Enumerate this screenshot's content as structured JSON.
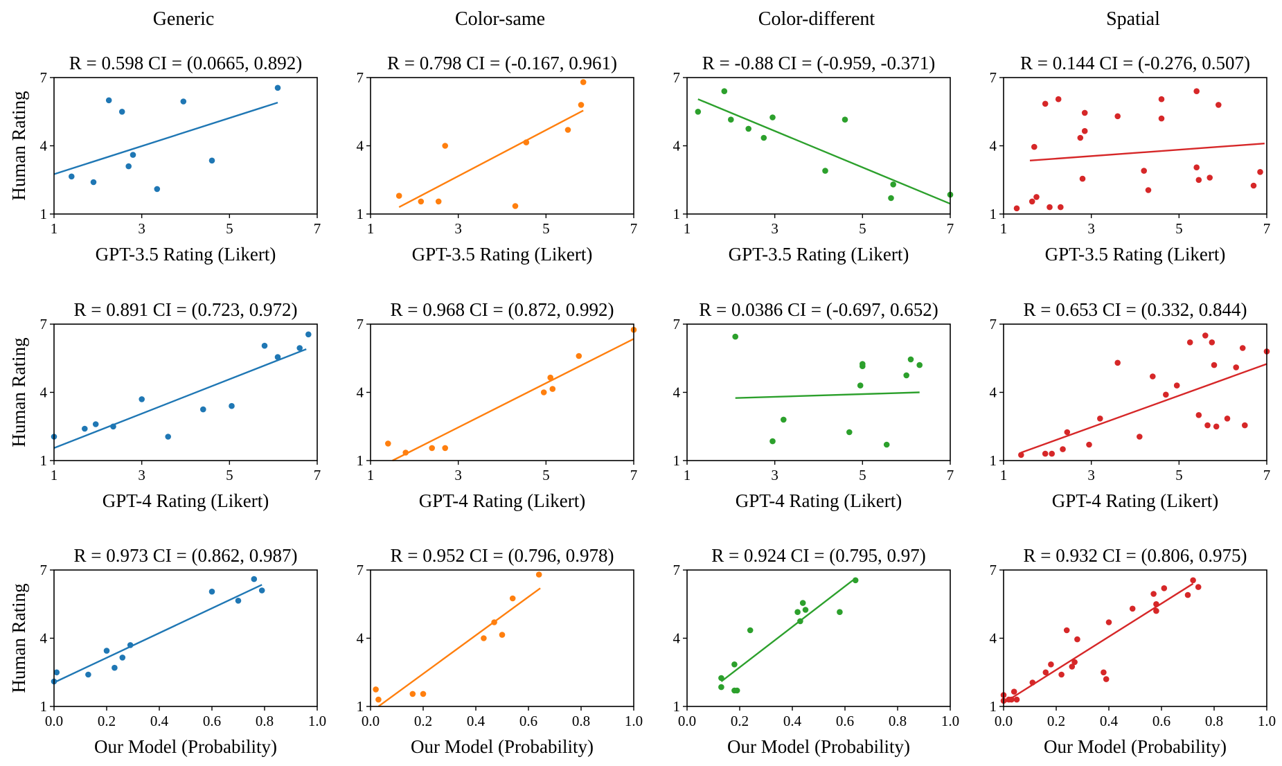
{
  "figure": {
    "column_titles": [
      "Generic",
      "Color-same",
      "Color-different",
      "Spatial"
    ],
    "ylabel": "Human Rating",
    "row_xlabels": [
      "GPT-3.5 Rating (Likert)",
      "GPT-4 Rating (Likert)",
      "Our Model (Probability)"
    ]
  },
  "colors": [
    "#1f77b4",
    "#ff7f0e",
    "#2ca02c",
    "#d62728"
  ],
  "chart_data": [
    {
      "type": "scatter",
      "row": 0,
      "col": 0,
      "title": "R = 0.598  CI = (0.0665, 0.892)",
      "xlabel": "GPT-3.5 Rating (Likert)",
      "ylabel": "Human Rating",
      "xlim": [
        1,
        7
      ],
      "ylim": [
        1,
        7
      ],
      "xticks": [
        1,
        3,
        5,
        7
      ],
      "xtick_labels": [
        "1",
        "3",
        "5",
        "7"
      ],
      "yticks": [
        1,
        4,
        7
      ],
      "ytick_labels": [
        "1",
        "4",
        "7"
      ],
      "x": [
        1.4,
        1.9,
        2.25,
        2.55,
        2.7,
        2.8,
        3.35,
        3.95,
        4.6,
        6.1
      ],
      "y": [
        2.65,
        2.4,
        6.0,
        5.5,
        3.1,
        3.6,
        2.1,
        5.95,
        3.35,
        6.55
      ],
      "fit": {
        "x": [
          1,
          6.1
        ],
        "y": [
          2.75,
          5.9
        ]
      }
    },
    {
      "type": "scatter",
      "row": 0,
      "col": 1,
      "title": "R = 0.798  CI = (-0.167, 0.961)",
      "xlabel": "GPT-3.5 Rating (Likert)",
      "ylabel": "Human Rating",
      "xlim": [
        1,
        7
      ],
      "ylim": [
        1,
        7
      ],
      "xticks": [
        1,
        3,
        5,
        7
      ],
      "xtick_labels": [
        "1",
        "3",
        "5",
        "7"
      ],
      "yticks": [
        1,
        4,
        7
      ],
      "ytick_labels": [
        "1",
        "4",
        "7"
      ],
      "x": [
        1.65,
        2.15,
        2.55,
        2.7,
        4.3,
        4.55,
        5.5,
        5.8,
        5.85
      ],
      "y": [
        1.8,
        1.55,
        1.55,
        4.0,
        1.35,
        4.15,
        4.7,
        5.8,
        6.8
      ],
      "fit": {
        "x": [
          1.65,
          5.85
        ],
        "y": [
          1.3,
          5.55
        ]
      }
    },
    {
      "type": "scatter",
      "row": 0,
      "col": 2,
      "title": "R = -0.88  CI = (-0.959, -0.371)",
      "xlabel": "GPT-3.5 Rating (Likert)",
      "ylabel": "Human Rating",
      "xlim": [
        1,
        7
      ],
      "ylim": [
        1,
        7
      ],
      "xticks": [
        1,
        3,
        5,
        7
      ],
      "xtick_labels": [
        "1",
        "3",
        "5",
        "7"
      ],
      "yticks": [
        1,
        4,
        7
      ],
      "ytick_labels": [
        "1",
        "4",
        "7"
      ],
      "x": [
        1.25,
        1.85,
        2.0,
        2.4,
        2.75,
        2.95,
        4.15,
        4.6,
        5.65,
        5.7,
        7.0
      ],
      "y": [
        5.5,
        6.4,
        5.15,
        4.75,
        4.35,
        5.25,
        2.9,
        5.15,
        1.7,
        2.3,
        1.85
      ],
      "fit": {
        "x": [
          1.25,
          7.0
        ],
        "y": [
          6.05,
          1.45
        ]
      }
    },
    {
      "type": "scatter",
      "row": 0,
      "col": 3,
      "title": "R = 0.144  CI = (-0.276, 0.507)",
      "xlabel": "GPT-3.5 Rating (Likert)",
      "ylabel": "Human Rating",
      "xlim": [
        1,
        7
      ],
      "ylim": [
        1,
        7
      ],
      "xticks": [
        1,
        3,
        5,
        7
      ],
      "xtick_labels": [
        "1",
        "3",
        "5",
        "7"
      ],
      "yticks": [
        1,
        4,
        7
      ],
      "ytick_labels": [
        "1",
        "4",
        "7"
      ],
      "x": [
        1.3,
        1.65,
        1.7,
        1.75,
        1.95,
        2.05,
        2.25,
        2.3,
        2.75,
        2.8,
        2.85,
        2.85,
        3.6,
        4.2,
        4.3,
        4.6,
        4.6,
        5.4,
        5.4,
        5.45,
        5.7,
        5.9,
        6.7,
        6.85
      ],
      "y": [
        1.25,
        1.55,
        3.95,
        1.75,
        5.85,
        1.3,
        6.05,
        1.3,
        4.35,
        2.55,
        5.45,
        4.65,
        5.3,
        2.9,
        2.05,
        6.05,
        5.2,
        6.4,
        3.05,
        2.5,
        2.6,
        5.8,
        2.25,
        2.85
      ],
      "fit": {
        "x": [
          1.6,
          6.95
        ],
        "y": [
          3.35,
          4.1
        ]
      }
    },
    {
      "type": "scatter",
      "row": 1,
      "col": 0,
      "title": "R = 0.891  CI = (0.723, 0.972)",
      "xlabel": "GPT-4 Rating (Likert)",
      "ylabel": "Human Rating",
      "xlim": [
        1,
        7
      ],
      "ylim": [
        1,
        7
      ],
      "xticks": [
        1,
        3,
        5,
        7
      ],
      "xtick_labels": [
        "1",
        "3",
        "5",
        "7"
      ],
      "yticks": [
        1,
        4,
        7
      ],
      "ytick_labels": [
        "1",
        "4",
        "7"
      ],
      "x": [
        1.0,
        1.7,
        1.95,
        2.35,
        3.0,
        3.6,
        4.4,
        5.05,
        5.8,
        6.1,
        6.6,
        6.8
      ],
      "y": [
        2.05,
        2.4,
        2.6,
        2.5,
        3.7,
        2.05,
        3.25,
        3.4,
        6.05,
        5.55,
        5.95,
        6.55
      ],
      "fit": {
        "x": [
          1,
          6.75
        ],
        "y": [
          1.55,
          5.9
        ]
      }
    },
    {
      "type": "scatter",
      "row": 1,
      "col": 1,
      "title": "R = 0.968  CI = (0.872, 0.992)",
      "xlabel": "GPT-4 Rating (Likert)",
      "ylabel": "Human Rating",
      "xlim": [
        1,
        7
      ],
      "ylim": [
        1,
        7
      ],
      "xticks": [
        1,
        3,
        5,
        7
      ],
      "xtick_labels": [
        "1",
        "3",
        "5",
        "7"
      ],
      "yticks": [
        1,
        4,
        7
      ],
      "ytick_labels": [
        "1",
        "4",
        "7"
      ],
      "x": [
        1.4,
        1.8,
        2.4,
        2.7,
        4.95,
        5.1,
        5.15,
        5.75,
        7.0
      ],
      "y": [
        1.75,
        1.35,
        1.55,
        1.55,
        4.0,
        4.65,
        4.15,
        5.6,
        6.75
      ],
      "fit": {
        "x": [
          1.5,
          7.0
        ],
        "y": [
          1.0,
          6.35
        ]
      }
    },
    {
      "type": "scatter",
      "row": 1,
      "col": 2,
      "title": "R = 0.0386  CI = (-0.697, 0.652)",
      "xlabel": "GPT-4 Rating (Likert)",
      "ylabel": "Human Rating",
      "xlim": [
        1,
        7
      ],
      "ylim": [
        1,
        7
      ],
      "xticks": [
        1,
        3,
        5,
        7
      ],
      "xtick_labels": [
        "1",
        "3",
        "5",
        "7"
      ],
      "yticks": [
        1,
        4,
        7
      ],
      "ytick_labels": [
        "1",
        "4",
        "7"
      ],
      "x": [
        2.1,
        2.95,
        3.2,
        4.7,
        4.95,
        5.0,
        5.0,
        5.55,
        6.0,
        6.1,
        6.3
      ],
      "y": [
        6.45,
        1.85,
        2.8,
        2.25,
        4.3,
        5.15,
        5.25,
        1.7,
        4.75,
        5.45,
        5.2
      ],
      "fit": {
        "x": [
          2.1,
          6.3
        ],
        "y": [
          3.75,
          4.0
        ]
      }
    },
    {
      "type": "scatter",
      "row": 1,
      "col": 3,
      "title": "R = 0.653  CI = (0.332, 0.844)",
      "xlabel": "GPT-4 Rating (Likert)",
      "ylabel": "Human Rating",
      "xlim": [
        1,
        7
      ],
      "ylim": [
        1,
        7
      ],
      "xticks": [
        1,
        3,
        5,
        7
      ],
      "xtick_labels": [
        "1",
        "3",
        "5",
        "7"
      ],
      "yticks": [
        1,
        4,
        7
      ],
      "ytick_labels": [
        "1",
        "4",
        "7"
      ],
      "x": [
        1.4,
        1.95,
        2.1,
        2.35,
        2.45,
        2.95,
        3.2,
        3.6,
        4.1,
        4.4,
        4.7,
        4.95,
        5.25,
        5.45,
        5.6,
        5.65,
        5.75,
        5.8,
        5.85,
        6.1,
        6.3,
        6.45,
        6.5,
        7.0
      ],
      "y": [
        1.25,
        1.3,
        1.3,
        1.5,
        2.25,
        1.7,
        2.85,
        5.3,
        2.05,
        4.7,
        3.9,
        4.3,
        6.2,
        3.0,
        6.5,
        2.55,
        6.2,
        5.2,
        2.5,
        2.85,
        5.1,
        5.95,
        2.55,
        5.8
      ],
      "fit": {
        "x": [
          1.4,
          7.0
        ],
        "y": [
          1.35,
          5.25
        ]
      }
    },
    {
      "type": "scatter",
      "row": 2,
      "col": 0,
      "title": "R = 0.973  CI = (0.862, 0.987)",
      "xlabel": "Our Model (Probability)",
      "ylabel": "Human Rating",
      "xlim": [
        0,
        1
      ],
      "ylim": [
        1,
        7
      ],
      "xticks": [
        0,
        0.2,
        0.4,
        0.6,
        0.8,
        1.0
      ],
      "xtick_labels": [
        "0.0",
        "0.2",
        "0.4",
        "0.6",
        "0.8",
        "1.0"
      ],
      "yticks": [
        1,
        4,
        7
      ],
      "ytick_labels": [
        "1",
        "4",
        "7"
      ],
      "x": [
        0.0,
        0.01,
        0.13,
        0.2,
        0.23,
        0.26,
        0.29,
        0.6,
        0.7,
        0.76,
        0.79
      ],
      "y": [
        2.1,
        2.5,
        2.4,
        3.45,
        2.7,
        3.15,
        3.7,
        6.05,
        5.65,
        6.6,
        6.1
      ],
      "fit": {
        "x": [
          0.0,
          0.79
        ],
        "y": [
          2.05,
          6.35
        ]
      }
    },
    {
      "type": "scatter",
      "row": 2,
      "col": 1,
      "title": "R = 0.952  CI = (0.796, 0.978)",
      "xlabel": "Our Model (Probability)",
      "ylabel": "Human Rating",
      "xlim": [
        0,
        1
      ],
      "ylim": [
        1,
        7
      ],
      "xticks": [
        0,
        0.2,
        0.4,
        0.6,
        0.8,
        1.0
      ],
      "xtick_labels": [
        "0.0",
        "0.2",
        "0.4",
        "0.6",
        "0.8",
        "1.0"
      ],
      "yticks": [
        1,
        4,
        7
      ],
      "ytick_labels": [
        "1",
        "4",
        "7"
      ],
      "x": [
        0.02,
        0.03,
        0.16,
        0.2,
        0.43,
        0.47,
        0.5,
        0.54,
        0.64
      ],
      "y": [
        1.75,
        1.3,
        1.55,
        1.55,
        4.0,
        4.7,
        4.15,
        5.75,
        6.8
      ],
      "fit": {
        "x": [
          0.03,
          0.645
        ],
        "y": [
          1.0,
          6.2
        ]
      }
    },
    {
      "type": "scatter",
      "row": 2,
      "col": 2,
      "title": "R = 0.924  CI = (0.795, 0.97)",
      "xlabel": "Our Model (Probability)",
      "ylabel": "Human Rating",
      "xlim": [
        0,
        1
      ],
      "ylim": [
        1,
        7
      ],
      "xticks": [
        0,
        0.2,
        0.4,
        0.6,
        0.8,
        1.0
      ],
      "xtick_labels": [
        "0.0",
        "0.2",
        "0.4",
        "0.6",
        "0.8",
        "1.0"
      ],
      "yticks": [
        1,
        4,
        7
      ],
      "ytick_labels": [
        "1",
        "4",
        "7"
      ],
      "x": [
        0.13,
        0.13,
        0.18,
        0.18,
        0.19,
        0.24,
        0.42,
        0.43,
        0.44,
        0.45,
        0.58,
        0.64
      ],
      "y": [
        2.25,
        1.85,
        1.7,
        2.85,
        1.7,
        4.35,
        5.15,
        4.75,
        5.55,
        5.25,
        5.15,
        6.55
      ],
      "fit": {
        "x": [
          0.13,
          0.63
        ],
        "y": [
          2.1,
          6.55
        ]
      }
    },
    {
      "type": "scatter",
      "row": 2,
      "col": 3,
      "title": "R = 0.932  CI = (0.806, 0.975)",
      "xlabel": "Our Model (Probability)",
      "ylabel": "Human Rating",
      "xlim": [
        0,
        1
      ],
      "ylim": [
        1,
        7
      ],
      "xticks": [
        0,
        0.2,
        0.4,
        0.6,
        0.8,
        1.0
      ],
      "xtick_labels": [
        "0.0",
        "0.2",
        "0.4",
        "0.6",
        "0.8",
        "1.0"
      ],
      "yticks": [
        1,
        4,
        7
      ],
      "ytick_labels": [
        "1",
        "4",
        "7"
      ],
      "x": [
        0.0,
        0.0,
        0.02,
        0.03,
        0.04,
        0.05,
        0.11,
        0.16,
        0.18,
        0.22,
        0.24,
        0.26,
        0.27,
        0.28,
        0.38,
        0.39,
        0.4,
        0.49,
        0.57,
        0.58,
        0.58,
        0.61,
        0.7,
        0.72,
        0.74
      ],
      "y": [
        1.5,
        1.25,
        1.3,
        1.3,
        1.65,
        1.3,
        2.05,
        2.5,
        2.85,
        2.4,
        4.35,
        2.75,
        2.95,
        3.95,
        2.5,
        2.2,
        4.7,
        5.3,
        5.95,
        5.5,
        5.2,
        6.2,
        5.9,
        6.55,
        6.25
      ],
      "fit": {
        "x": [
          0.0,
          0.72
        ],
        "y": [
          1.15,
          6.4
        ]
      }
    }
  ]
}
